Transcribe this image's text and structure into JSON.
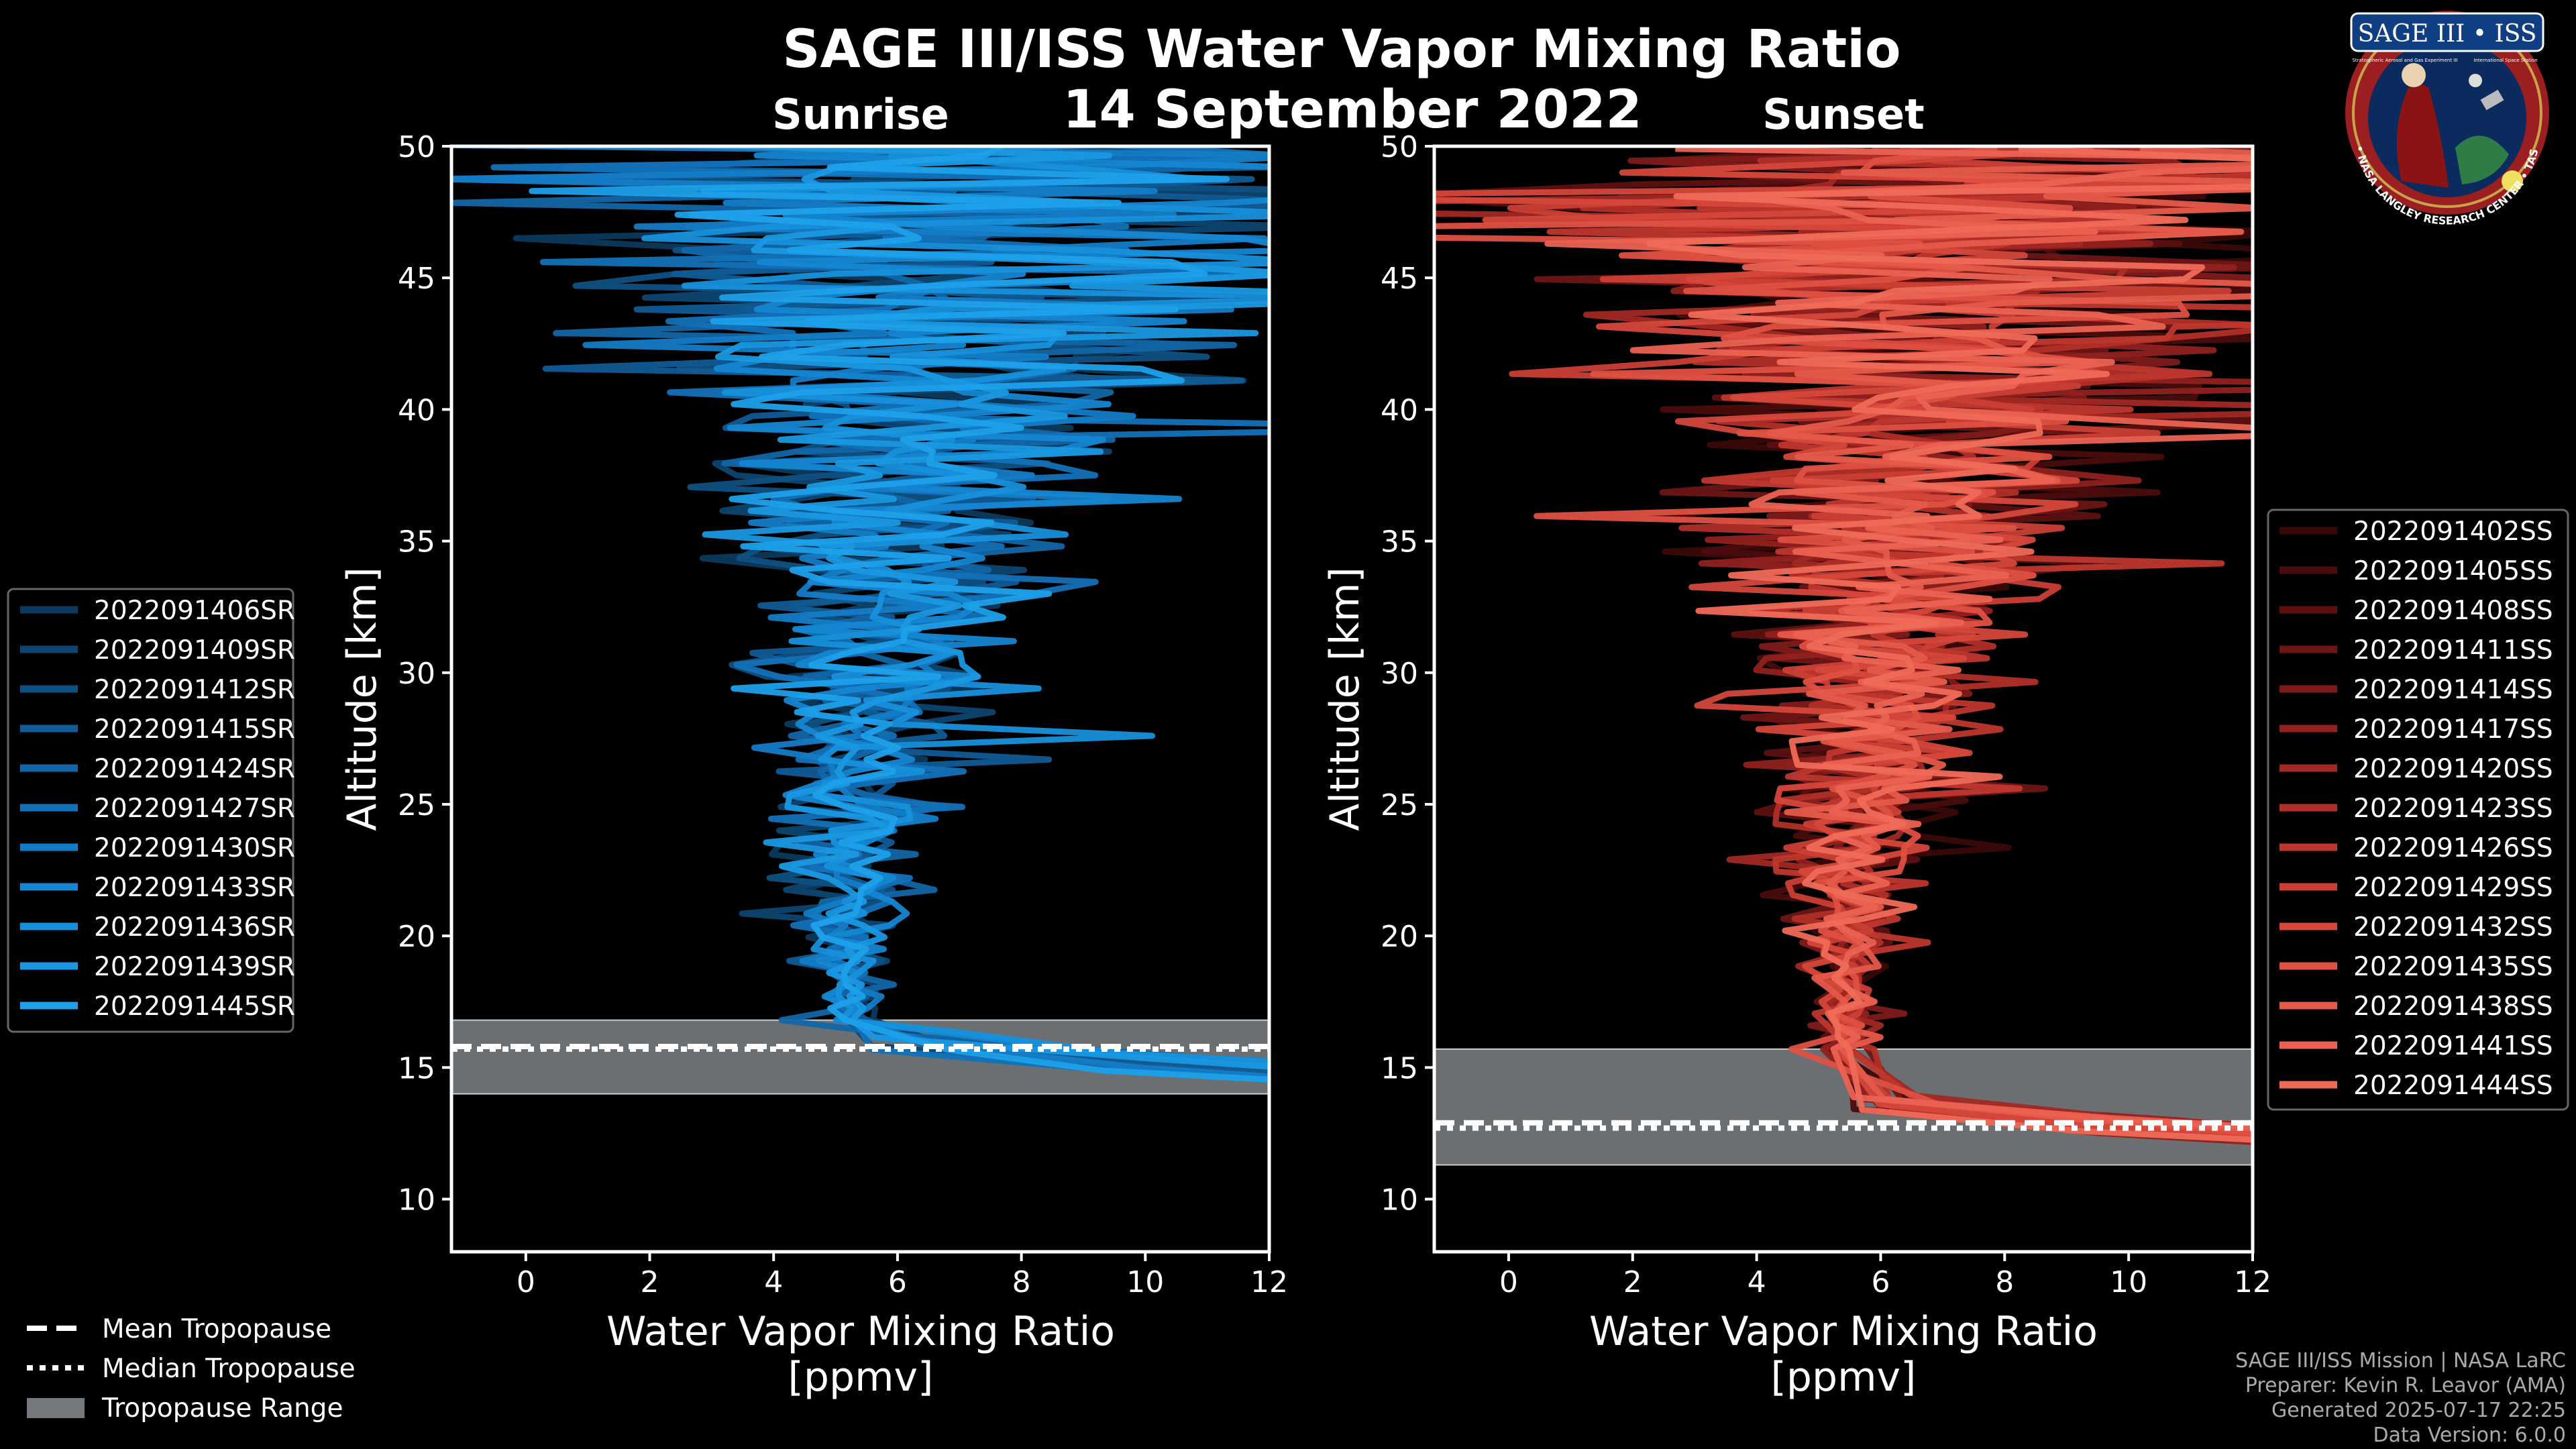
{
  "title": "SAGE III/ISS Water Vapor Mixing Ratio",
  "date": "14 September 2022",
  "logo": {
    "name": "SAGE III • ISS",
    "subtitle_left": "Stratospheric Aerosol and Gas Experiment III",
    "subtitle_right": "International Space Station",
    "ring_text": "BALL • NASA LANGLEY RESEARCH CENTER • TAS • ESA"
  },
  "footer": {
    "line1": "SAGE III/ISS Mission | NASA LaRC",
    "line2": "Preparer: Kevin R. Leavor (AMA)",
    "line3": "Generated 2025-07-17 22:25",
    "line4": "Data Version: 6.0.0"
  },
  "tropopause_legend": [
    {
      "label": "Mean Tropopause",
      "style": "dashed"
    },
    {
      "label": "Median Tropopause",
      "style": "dotted"
    },
    {
      "label": "Tropopause Range",
      "style": "patch"
    }
  ],
  "chart_data": [
    {
      "id": "sunrise",
      "type": "line",
      "subtitle": "Sunrise",
      "xlabel_line1": "Water Vapor Mixing Ratio",
      "xlabel_line2": "[ppmv]",
      "ylabel": "Altitude [km]",
      "xlim": [
        -1.2,
        12
      ],
      "ylim": [
        8,
        50
      ],
      "xticks": [
        0,
        2,
        4,
        6,
        8,
        10,
        12
      ],
      "yticks": [
        10,
        15,
        20,
        25,
        30,
        35,
        40,
        45,
        50
      ],
      "tropopause": {
        "mean": 15.8,
        "median": 15.7,
        "min": 14.0,
        "max": 16.8
      },
      "series": [
        {
          "name": "2022091406SR",
          "color": "#0b3a5c"
        },
        {
          "name": "2022091409SR",
          "color": "#0d4570"
        },
        {
          "name": "2022091412SR",
          "color": "#0f5083"
        },
        {
          "name": "2022091415SR",
          "color": "#115b96"
        },
        {
          "name": "2022091424SR",
          "color": "#1266a8"
        },
        {
          "name": "2022091427SR",
          "color": "#1371b8"
        },
        {
          "name": "2022091430SR",
          "color": "#147cc6"
        },
        {
          "name": "2022091433SR",
          "color": "#1586d2"
        },
        {
          "name": "2022091436SR",
          "color": "#1790db"
        },
        {
          "name": "2022091439SR",
          "color": "#1a98e2"
        },
        {
          "name": "2022091445SR",
          "color": "#1ea0ea"
        }
      ]
    },
    {
      "id": "sunset",
      "type": "line",
      "subtitle": "Sunset",
      "xlabel_line1": "Water Vapor Mixing Ratio",
      "xlabel_line2": "[ppmv]",
      "ylabel": "Altitude [km]",
      "xlim": [
        -1.2,
        12
      ],
      "ylim": [
        8,
        50
      ],
      "xticks": [
        0,
        2,
        4,
        6,
        8,
        10,
        12
      ],
      "yticks": [
        10,
        15,
        20,
        25,
        30,
        35,
        40,
        45,
        50
      ],
      "tropopause": {
        "mean": 12.9,
        "median": 12.7,
        "min": 11.3,
        "max": 15.7
      },
      "series": [
        {
          "name": "2022091402SS",
          "color": "#3a0808"
        },
        {
          "name": "2022091405SS",
          "color": "#4a0c0c"
        },
        {
          "name": "2022091408SS",
          "color": "#5c1010"
        },
        {
          "name": "2022091411SS",
          "color": "#6d1515"
        },
        {
          "name": "2022091414SS",
          "color": "#7e1b1a"
        },
        {
          "name": "2022091417SS",
          "color": "#90211e"
        },
        {
          "name": "2022091420SS",
          "color": "#a12823"
        },
        {
          "name": "2022091423SS",
          "color": "#b02f28"
        },
        {
          "name": "2022091426SS",
          "color": "#be372e"
        },
        {
          "name": "2022091429SS",
          "color": "#ca3f35"
        },
        {
          "name": "2022091432SS",
          "color": "#d5473b"
        },
        {
          "name": "2022091435SS",
          "color": "#de5042"
        },
        {
          "name": "2022091438SS",
          "color": "#e55a4a"
        },
        {
          "name": "2022091441SS",
          "color": "#eb6252"
        },
        {
          "name": "2022091444SS",
          "color": "#f06a58"
        }
      ]
    }
  ]
}
